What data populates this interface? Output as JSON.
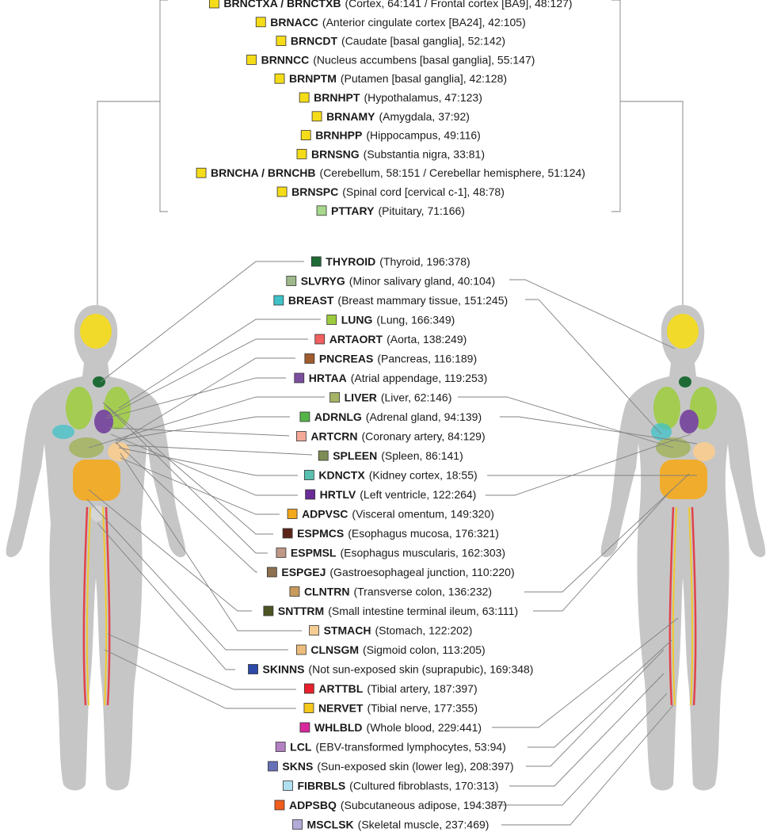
{
  "brain_group": [
    {
      "code": "BRNCTXA / BRNCTXB",
      "desc": "(Cortex, 64:141 / Frontal cortex [BA9], 48:127)",
      "color": "#f5dc18"
    },
    {
      "code": "BRNACC",
      "desc": "(Anterior cingulate cortex [BA24], 42:105)",
      "color": "#f5dc18"
    },
    {
      "code": "BRNCDT",
      "desc": "(Caudate [basal ganglia], 52:142)",
      "color": "#f5dc18"
    },
    {
      "code": "BRNNCC",
      "desc": "(Nucleus accumbens [basal ganglia], 55:147)",
      "color": "#f5dc18"
    },
    {
      "code": "BRNPTM",
      "desc": "(Putamen [basal ganglia], 42:128)",
      "color": "#f5dc18"
    },
    {
      "code": "BRNHPT",
      "desc": "(Hypothalamus, 47:123)",
      "color": "#f5dc18"
    },
    {
      "code": "BRNAMY",
      "desc": "(Amygdala, 37:92)",
      "color": "#f5dc18"
    },
    {
      "code": "BRNHPP",
      "desc": "(Hippocampus, 49:116)",
      "color": "#f5dc18"
    },
    {
      "code": "BRNSNG",
      "desc": "(Substantia nigra, 33:81)",
      "color": "#f5dc18"
    },
    {
      "code": "BRNCHA / BRNCHB",
      "desc": "(Cerebellum, 58:151 / Cerebellar hemisphere, 51:124)",
      "color": "#f5dc18"
    },
    {
      "code": "BRNSPC",
      "desc": "(Spinal cord [cervical c-1], 48:78)",
      "color": "#f5dc18"
    },
    {
      "code": "PTTARY",
      "desc": "(Pituitary, 71:166)",
      "color": "#a8d88c"
    }
  ],
  "tissues": [
    {
      "code": "THYROID",
      "desc": "(Thyroid, 196:378)",
      "color": "#1f6b35"
    },
    {
      "code": "SLVRYG",
      "desc": "(Minor salivary gland, 40:104)",
      "color": "#9db88a"
    },
    {
      "code": "BREAST",
      "desc": "(Breast mammary tissue, 151:245)",
      "color": "#3ec2c8"
    },
    {
      "code": "LUNG",
      "desc": "(Lung, 166:349)",
      "color": "#9ccc3c"
    },
    {
      "code": "ARTAORT",
      "desc": "(Aorta, 138:249)",
      "color": "#f06060"
    },
    {
      "code": "PNCREAS",
      "desc": "(Pancreas, 116:189)",
      "color": "#a05c2c"
    },
    {
      "code": "HRTAA",
      "desc": "(Atrial appendage, 119:253)",
      "color": "#7c4ea0"
    },
    {
      "code": "LIVER",
      "desc": "(Liver, 62:146)",
      "color": "#a4b464"
    },
    {
      "code": "ADRNLG",
      "desc": "(Adrenal gland, 94:139)",
      "color": "#54b448"
    },
    {
      "code": "ARTCRN",
      "desc": "(Coronary artery, 84:129)",
      "color": "#f4a898"
    },
    {
      "code": "SPLEEN",
      "desc": "(Spleen, 86:141)",
      "color": "#7c8c54"
    },
    {
      "code": "KDNCTX",
      "desc": "(Kidney cortex, 18:55)",
      "color": "#58c0b0"
    },
    {
      "code": "HRTLV",
      "desc": "(Left ventricle, 122:264)",
      "color": "#6a2c98"
    },
    {
      "code": "ADPVSC",
      "desc": "(Visceral omentum, 149:320)",
      "color": "#f4a81c"
    },
    {
      "code": "ESPMCS",
      "desc": "(Esophagus mucosa, 176:321)",
      "color": "#5c2418"
    },
    {
      "code": "ESPMSL",
      "desc": "(Esophagus muscularis, 162:303)",
      "color": "#c09888"
    },
    {
      "code": "ESPGEJ",
      "desc": "(Gastroesophageal junction, 110:220)",
      "color": "#8c7050"
    },
    {
      "code": "CLNTRN",
      "desc": "(Transverse colon, 136:232)",
      "color": "#c89a5c"
    },
    {
      "code": "SNTTRM",
      "desc": "(Small intestine terminal ileum, 63:111)",
      "color": "#4c5424"
    },
    {
      "code": "STMACH",
      "desc": "(Stomach, 122:202)",
      "color": "#f4cc94"
    },
    {
      "code": "CLNSGM",
      "desc": "(Sigmoid colon, 113:205)",
      "color": "#ecbc7c"
    },
    {
      "code": "SKINNS",
      "desc": "(Not sun-exposed skin (suprapubic), 169:348)",
      "color": "#2c48a8"
    },
    {
      "code": "ARTTBL",
      "desc": "(Tibial artery, 187:397)",
      "color": "#e8202c"
    },
    {
      "code": "NERVET",
      "desc": "(Tibial nerve, 177:355)",
      "color": "#f4c81c"
    },
    {
      "code": "WHLBLD",
      "desc": "(Whole blood, 229:441)",
      "color": "#d8289c"
    },
    {
      "code": "LCL",
      "desc": "(EBV-transformed lymphocytes, 53:94)",
      "color": "#b480c4"
    },
    {
      "code": "SKNS",
      "desc": "(Sun-exposed skin (lower leg), 208:397)",
      "color": "#6870b8"
    },
    {
      "code": "FIBRBLS",
      "desc": "(Cultured fibroblasts, 170:313)",
      "color": "#b0e0f0"
    },
    {
      "code": "ADPSBQ",
      "desc": "(Subcutaneous adipose, 194:387)",
      "color": "#f05c1c"
    },
    {
      "code": "MSCLSK",
      "desc": "(Skeletal muscle, 237:469)",
      "color": "#b4aad8"
    }
  ],
  "colors": {
    "silhouette": "#c6c6c6",
    "silhouette_inner": "#d6d6d6",
    "leader": "#808080",
    "bracket": "#8c8c8c"
  }
}
